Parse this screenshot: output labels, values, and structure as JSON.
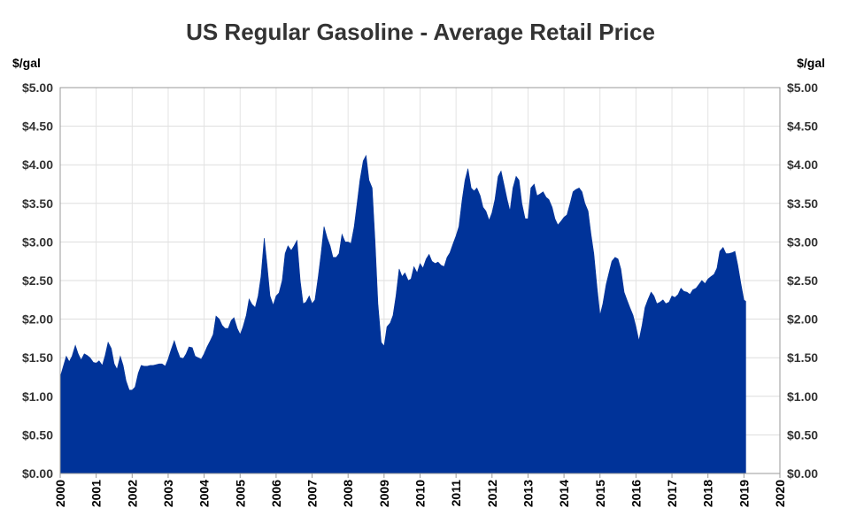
{
  "chart_data": {
    "type": "area",
    "title": "US Regular Gasoline - Average Retail Price",
    "y_unit_left": "$/gal",
    "y_unit_right": "$/gal",
    "xlabel": "",
    "ylabel": "",
    "xlim": [
      2000,
      2020
    ],
    "ylim": [
      0,
      5
    ],
    "x_ticks": [
      "2000",
      "2001",
      "2002",
      "2003",
      "2004",
      "2005",
      "2006",
      "2007",
      "2008",
      "2009",
      "2010",
      "2011",
      "2012",
      "2013",
      "2014",
      "2015",
      "2016",
      "2017",
      "2018",
      "2019",
      "2020"
    ],
    "y_ticks": [
      "$0.00",
      "$0.50",
      "$1.00",
      "$1.50",
      "$2.00",
      "$2.50",
      "$3.00",
      "$3.50",
      "$4.00",
      "$4.50",
      "$5.00"
    ],
    "grid": true,
    "legend": "none",
    "series": [
      {
        "color": "#003399",
        "x": [
          2000.0,
          2000.08,
          2000.17,
          2000.25,
          2000.33,
          2000.42,
          2000.5,
          2000.58,
          2000.67,
          2000.75,
          2000.83,
          2000.92,
          2001.0,
          2001.08,
          2001.17,
          2001.25,
          2001.33,
          2001.42,
          2001.5,
          2001.58,
          2001.67,
          2001.75,
          2001.83,
          2001.92,
          2002.0,
          2002.08,
          2002.17,
          2002.25,
          2002.33,
          2002.42,
          2002.5,
          2002.58,
          2002.67,
          2002.75,
          2002.83,
          2002.92,
          2003.0,
          2003.08,
          2003.17,
          2003.25,
          2003.33,
          2003.42,
          2003.5,
          2003.58,
          2003.67,
          2003.75,
          2003.83,
          2003.92,
          2004.0,
          2004.08,
          2004.17,
          2004.25,
          2004.33,
          2004.42,
          2004.5,
          2004.58,
          2004.67,
          2004.75,
          2004.83,
          2004.92,
          2005.0,
          2005.08,
          2005.17,
          2005.25,
          2005.33,
          2005.42,
          2005.5,
          2005.58,
          2005.67,
          2005.75,
          2005.83,
          2005.92,
          2006.0,
          2006.08,
          2006.17,
          2006.25,
          2006.33,
          2006.42,
          2006.5,
          2006.58,
          2006.67,
          2006.75,
          2006.83,
          2006.92,
          2007.0,
          2007.08,
          2007.17,
          2007.25,
          2007.33,
          2007.42,
          2007.5,
          2007.58,
          2007.67,
          2007.75,
          2007.83,
          2007.92,
          2008.0,
          2008.08,
          2008.17,
          2008.25,
          2008.33,
          2008.42,
          2008.5,
          2008.58,
          2008.67,
          2008.75,
          2008.83,
          2008.92,
          2009.0,
          2009.08,
          2009.17,
          2009.25,
          2009.33,
          2009.42,
          2009.5,
          2009.58,
          2009.67,
          2009.75,
          2009.83,
          2009.92,
          2010.0,
          2010.08,
          2010.17,
          2010.25,
          2010.33,
          2010.42,
          2010.5,
          2010.58,
          2010.67,
          2010.75,
          2010.83,
          2010.92,
          2011.0,
          2011.08,
          2011.17,
          2011.25,
          2011.33,
          2011.42,
          2011.5,
          2011.58,
          2011.67,
          2011.75,
          2011.83,
          2011.92,
          2012.0,
          2012.08,
          2012.17,
          2012.25,
          2012.33,
          2012.42,
          2012.5,
          2012.58,
          2012.67,
          2012.75,
          2012.83,
          2012.92,
          2013.0,
          2013.08,
          2013.17,
          2013.25,
          2013.33,
          2013.42,
          2013.5,
          2013.58,
          2013.67,
          2013.75,
          2013.83,
          2013.92,
          2014.0,
          2014.08,
          2014.17,
          2014.25,
          2014.33,
          2014.42,
          2014.5,
          2014.58,
          2014.67,
          2014.75,
          2014.83,
          2014.92,
          2015.0,
          2015.08,
          2015.17,
          2015.25,
          2015.33,
          2015.42,
          2015.5,
          2015.58,
          2015.67,
          2015.75,
          2015.83,
          2015.92,
          2016.0,
          2016.08,
          2016.17,
          2016.25,
          2016.33,
          2016.42,
          2016.5,
          2016.58,
          2016.67,
          2016.75,
          2016.83,
          2016.92,
          2017.0,
          2017.08,
          2017.17,
          2017.25,
          2017.33,
          2017.42,
          2017.5,
          2017.58,
          2017.67,
          2017.75,
          2017.83,
          2017.92,
          2018.0,
          2018.08,
          2018.17,
          2018.25,
          2018.33,
          2018.42,
          2018.5,
          2018.58,
          2018.67,
          2018.75,
          2018.83,
          2018.92,
          2019.0,
          2019.05
        ],
        "y": [
          1.25,
          1.38,
          1.52,
          1.45,
          1.52,
          1.66,
          1.55,
          1.47,
          1.55,
          1.53,
          1.5,
          1.44,
          1.43,
          1.46,
          1.4,
          1.53,
          1.7,
          1.62,
          1.42,
          1.35,
          1.52,
          1.4,
          1.2,
          1.08,
          1.08,
          1.12,
          1.3,
          1.4,
          1.39,
          1.39,
          1.4,
          1.4,
          1.41,
          1.42,
          1.42,
          1.39,
          1.48,
          1.6,
          1.72,
          1.6,
          1.5,
          1.49,
          1.55,
          1.64,
          1.63,
          1.52,
          1.5,
          1.48,
          1.55,
          1.64,
          1.72,
          1.8,
          2.04,
          2.0,
          1.92,
          1.88,
          1.88,
          1.98,
          2.02,
          1.88,
          1.8,
          1.9,
          2.05,
          2.26,
          2.19,
          2.15,
          2.3,
          2.55,
          3.05,
          2.7,
          2.3,
          2.18,
          2.3,
          2.34,
          2.5,
          2.85,
          2.95,
          2.89,
          2.95,
          3.02,
          2.5,
          2.2,
          2.22,
          2.3,
          2.2,
          2.25,
          2.55,
          2.85,
          3.2,
          3.05,
          2.95,
          2.8,
          2.8,
          2.85,
          3.1,
          3.0,
          3.0,
          2.98,
          3.2,
          3.5,
          3.8,
          4.05,
          4.12,
          3.8,
          3.7,
          3.0,
          2.2,
          1.7,
          1.65,
          1.9,
          1.95,
          2.05,
          2.3,
          2.65,
          2.55,
          2.6,
          2.5,
          2.52,
          2.68,
          2.6,
          2.72,
          2.66,
          2.78,
          2.84,
          2.75,
          2.72,
          2.74,
          2.7,
          2.68,
          2.8,
          2.86,
          2.98,
          3.08,
          3.2,
          3.55,
          3.8,
          3.95,
          3.7,
          3.66,
          3.7,
          3.6,
          3.45,
          3.4,
          3.28,
          3.38,
          3.55,
          3.85,
          3.92,
          3.75,
          3.55,
          3.4,
          3.7,
          3.85,
          3.8,
          3.5,
          3.3,
          3.3,
          3.7,
          3.75,
          3.6,
          3.62,
          3.65,
          3.58,
          3.55,
          3.45,
          3.3,
          3.22,
          3.27,
          3.32,
          3.35,
          3.5,
          3.65,
          3.68,
          3.7,
          3.65,
          3.5,
          3.4,
          3.1,
          2.85,
          2.4,
          2.05,
          2.2,
          2.45,
          2.6,
          2.75,
          2.8,
          2.78,
          2.65,
          2.35,
          2.25,
          2.15,
          2.05,
          1.9,
          1.72,
          1.92,
          2.15,
          2.25,
          2.35,
          2.3,
          2.2,
          2.22,
          2.25,
          2.2,
          2.22,
          2.3,
          2.28,
          2.32,
          2.4,
          2.36,
          2.35,
          2.32,
          2.38,
          2.4,
          2.45,
          2.5,
          2.46,
          2.52,
          2.55,
          2.58,
          2.66,
          2.88,
          2.93,
          2.85,
          2.85,
          2.86,
          2.88,
          2.7,
          2.45,
          2.25,
          2.23
        ]
      }
    ]
  }
}
